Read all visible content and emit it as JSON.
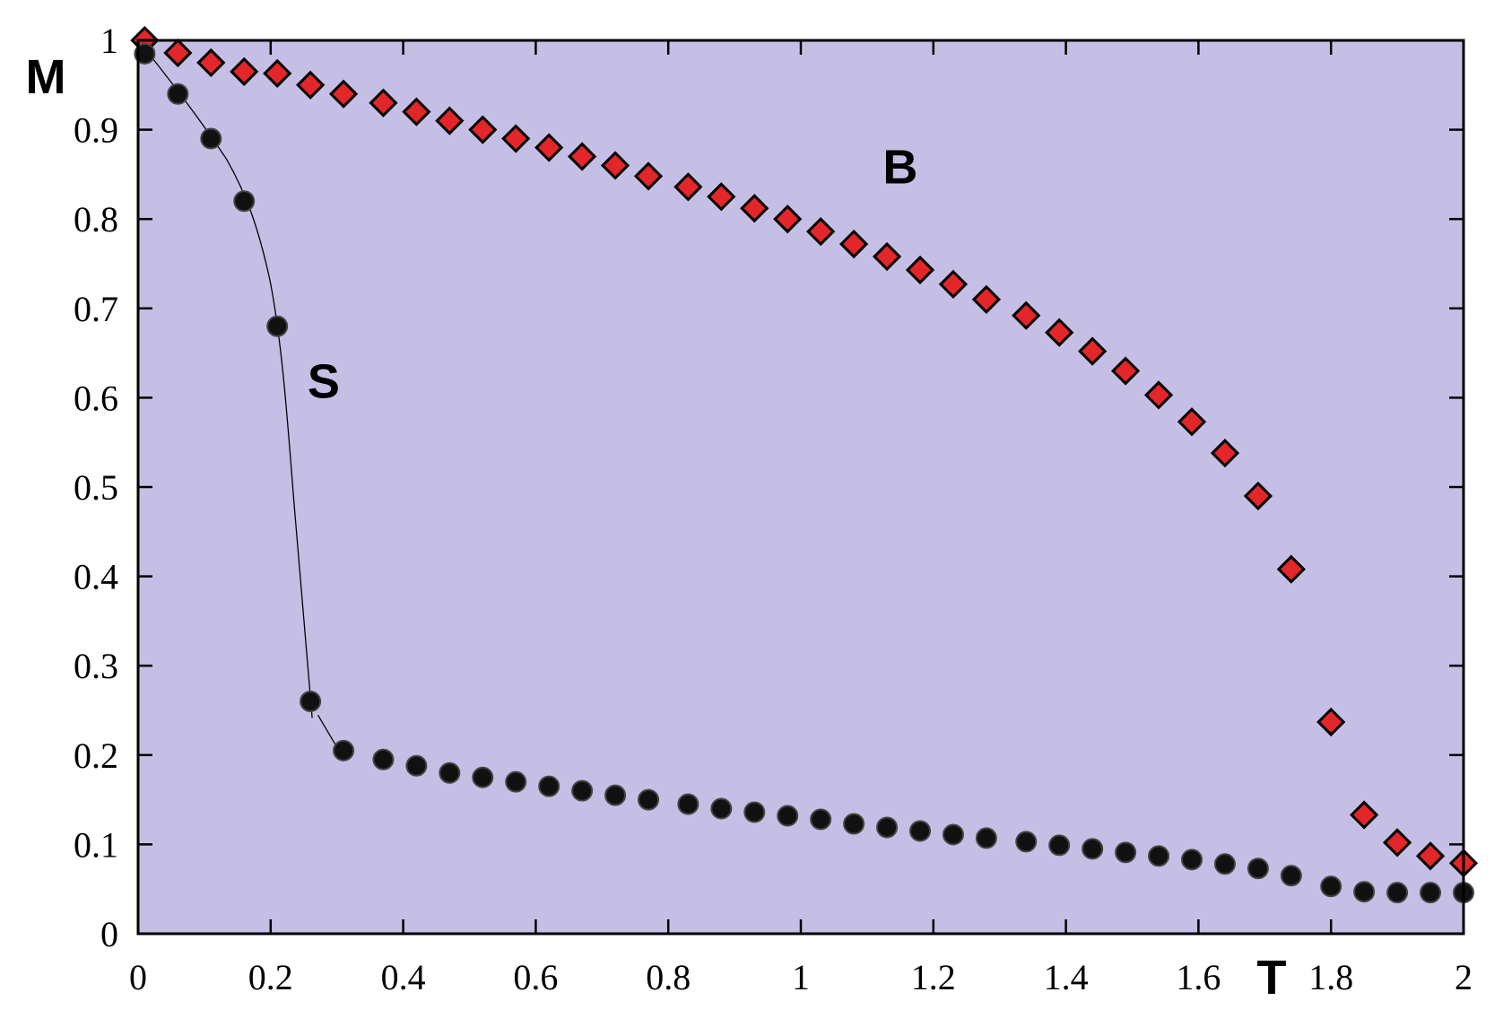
{
  "chart_data": {
    "type": "scatter",
    "xlabel": "T",
    "ylabel": "M",
    "annotations": [
      {
        "text": "B",
        "x": 1.15,
        "y": 0.84
      },
      {
        "text": "S",
        "x": 0.28,
        "y": 0.6
      }
    ],
    "xlim": [
      0,
      2
    ],
    "ylim": [
      0,
      1
    ],
    "xticks": [
      0,
      0.2,
      0.4,
      0.6,
      0.8,
      1,
      1.2,
      1.4,
      1.6,
      1.8,
      2
    ],
    "yticks": [
      0,
      0.1,
      0.2,
      0.3,
      0.4,
      0.5,
      0.6,
      0.7,
      0.8,
      0.9,
      1
    ],
    "background": "#c5bfe5",
    "x": [
      0.01,
      0.06,
      0.11,
      0.16,
      0.21,
      0.26,
      0.31,
      0.37,
      0.42,
      0.47,
      0.52,
      0.57,
      0.62,
      0.67,
      0.72,
      0.77,
      0.83,
      0.88,
      0.93,
      0.98,
      1.03,
      1.08,
      1.13,
      1.18,
      1.23,
      1.28,
      1.34,
      1.39,
      1.44,
      1.49,
      1.54,
      1.59,
      1.64,
      1.69,
      1.74,
      1.8,
      1.85,
      1.9,
      1.95,
      2.0
    ],
    "series": [
      {
        "marker": "diamond",
        "color": "#e3262a",
        "values": [
          1.0,
          0.986,
          0.975,
          0.965,
          0.963,
          0.95,
          0.94,
          0.93,
          0.92,
          0.91,
          0.9,
          0.89,
          0.88,
          0.87,
          0.86,
          0.848,
          0.836,
          0.825,
          0.812,
          0.8,
          0.786,
          0.772,
          0.758,
          0.743,
          0.727,
          0.71,
          0.692,
          0.673,
          0.652,
          0.63,
          0.603,
          0.573,
          0.538,
          0.49,
          0.408,
          0.237,
          0.133,
          0.102,
          0.087,
          0.079
        ]
      },
      {
        "marker": "circle",
        "color": "#111111",
        "values": [
          0.985,
          0.94,
          0.89,
          0.82,
          0.68,
          0.26,
          0.205,
          0.195,
          0.188,
          0.18,
          0.175,
          0.17,
          0.165,
          0.16,
          0.155,
          0.15,
          0.145,
          0.14,
          0.136,
          0.132,
          0.128,
          0.123,
          0.119,
          0.115,
          0.111,
          0.107,
          0.103,
          0.099,
          0.095,
          0.091,
          0.087,
          0.083,
          0.078,
          0.073,
          0.065,
          0.053,
          0.047,
          0.046,
          0.046,
          0.046
        ]
      }
    ]
  }
}
